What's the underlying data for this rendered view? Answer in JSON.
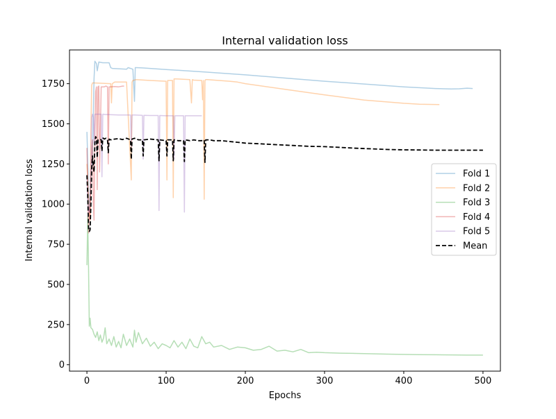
{
  "chart_data": {
    "type": "line",
    "title": "Internal validation loss",
    "xlabel": "Epochs",
    "ylabel": "Internal validation loss",
    "xlim": [
      -22,
      522
    ],
    "ylim": [
      -40,
      1960
    ],
    "xticks": [
      0,
      100,
      200,
      300,
      400,
      500
    ],
    "yticks": [
      0,
      250,
      500,
      750,
      1000,
      1250,
      1500,
      1750
    ],
    "grid": false,
    "legend_position": "center-right",
    "series": [
      {
        "name": "Fold 1",
        "color": "#1f77b4",
        "alpha": 0.35,
        "style": "solid",
        "x": [
          0,
          1,
          2,
          3,
          5,
          7,
          9,
          10,
          12,
          13,
          15,
          20,
          28,
          30,
          32,
          40,
          50,
          52,
          55,
          58,
          60,
          61,
          62,
          70,
          100,
          150,
          200,
          250,
          300,
          350,
          400,
          440,
          460,
          470,
          480,
          487
        ],
        "y": [
          1450,
          1280,
          1050,
          950,
          1150,
          1320,
          1780,
          1890,
          1875,
          1830,
          1885,
          1880,
          1880,
          1850,
          1845,
          1843,
          1840,
          1850,
          1845,
          1840,
          1640,
          1850,
          1850,
          1848,
          1838,
          1822,
          1805,
          1785,
          1765,
          1748,
          1730,
          1720,
          1717,
          1718,
          1722,
          1720
        ]
      },
      {
        "name": "Fold 2",
        "color": "#ff7f0e",
        "alpha": 0.35,
        "style": "solid",
        "x": [
          0,
          2,
          4,
          5,
          6,
          7,
          8,
          30,
          31,
          32,
          35,
          50,
          56,
          57,
          58,
          62,
          80,
          100,
          101,
          102,
          108,
          109,
          110,
          112,
          130,
          132,
          133,
          135,
          145,
          146,
          147,
          148,
          149,
          150,
          152,
          180,
          190,
          200,
          250,
          300,
          350,
          400,
          420,
          445
        ],
        "y": [
          1250,
          1050,
          900,
          1450,
          1740,
          1755,
          1755,
          1750,
          1630,
          1750,
          1760,
          1760,
          1150,
          1760,
          1770,
          1775,
          1770,
          1765,
          1150,
          1770,
          1770,
          1040,
          1780,
          1780,
          1775,
          1630,
          1775,
          1772,
          1770,
          1650,
          1770,
          1030,
          1770,
          1775,
          1775,
          1765,
          1760,
          1750,
          1715,
          1680,
          1648,
          1628,
          1622,
          1620
        ]
      },
      {
        "name": "Fold 3",
        "color": "#2ca02c",
        "alpha": 0.35,
        "style": "solid",
        "x": [
          0,
          1,
          2,
          3,
          4,
          5,
          7,
          9,
          11,
          13,
          15,
          17,
          19,
          21,
          23,
          25,
          28,
          31,
          34,
          37,
          40,
          43,
          46,
          50,
          54,
          58,
          60,
          62,
          65,
          70,
          75,
          80,
          85,
          90,
          95,
          100,
          105,
          110,
          115,
          120,
          125,
          130,
          135,
          140,
          145,
          150,
          155,
          160,
          170,
          180,
          190,
          200,
          210,
          220,
          230,
          240,
          250,
          260,
          270,
          280,
          290,
          300,
          320,
          340,
          360,
          380,
          400,
          420,
          440,
          460,
          480,
          500
        ],
        "y": [
          620,
          920,
          610,
          240,
          290,
          230,
          220,
          190,
          170,
          205,
          150,
          185,
          140,
          165,
          230,
          130,
          160,
          120,
          175,
          110,
          145,
          105,
          190,
          120,
          160,
          110,
          215,
          140,
          200,
          130,
          165,
          115,
          140,
          100,
          130,
          120,
          105,
          150,
          110,
          140,
          100,
          160,
          115,
          105,
          175,
          130,
          140,
          110,
          120,
          95,
          110,
          105,
          90,
          95,
          115,
          85,
          90,
          80,
          95,
          75,
          78,
          75,
          72,
          70,
          68,
          66,
          64,
          63,
          62,
          61,
          60,
          60
        ]
      },
      {
        "name": "Fold 4",
        "color": "#d62728",
        "alpha": 0.35,
        "style": "solid",
        "x": [
          0,
          1,
          2,
          3,
          4,
          5,
          6,
          7,
          8,
          9,
          10,
          11,
          12,
          13,
          14,
          15,
          16,
          18,
          20,
          22,
          24,
          26,
          27,
          28,
          30,
          35,
          40,
          45,
          47
        ],
        "y": [
          1350,
          1100,
          820,
          980,
          900,
          1100,
          1350,
          1400,
          1000,
          900,
          1450,
          1700,
          1730,
          1090,
          1730,
          1735,
          1200,
          1730,
          1730,
          1730,
          1735,
          1730,
          1250,
          1730,
          1730,
          1732,
          1730,
          1735,
          1735
        ]
      },
      {
        "name": "Fold 5",
        "color": "#9467bd",
        "alpha": 0.35,
        "style": "solid",
        "x": [
          0,
          1,
          2,
          3,
          4,
          5,
          6,
          7,
          8,
          9,
          10,
          14,
          18,
          19,
          20,
          21,
          22,
          25,
          40,
          55,
          56,
          57,
          60,
          70,
          71,
          72,
          80,
          90,
          91,
          92,
          100,
          109,
          110,
          111,
          120,
          122,
          123,
          124,
          130,
          140,
          145
        ],
        "y": [
          1180,
          1020,
          960,
          950,
          1100,
          1250,
          1540,
          1560,
          1540,
          1380,
          1560,
          1560,
          1560,
          1170,
          1560,
          1560,
          1558,
          1558,
          1555,
          1555,
          1350,
          1555,
          1555,
          1553,
          1280,
          1553,
          1552,
          1552,
          960,
          1552,
          1550,
          1550,
          1280,
          1550,
          1550,
          1550,
          950,
          1550,
          1550,
          1550,
          1550
        ]
      },
      {
        "name": "Mean",
        "color": "#000000",
        "alpha": 1.0,
        "style": "dashed",
        "x": [
          0,
          1,
          2,
          3,
          4,
          5,
          6,
          7,
          8,
          9,
          10,
          11,
          12,
          13,
          14,
          16,
          18,
          19,
          20,
          21,
          22,
          24,
          26,
          27,
          28,
          30,
          35,
          40,
          45,
          50,
          55,
          56,
          57,
          60,
          65,
          70,
          71,
          72,
          80,
          90,
          91,
          92,
          100,
          101,
          102,
          108,
          109,
          110,
          111,
          115,
          120,
          122,
          123,
          124,
          130,
          135,
          140,
          145,
          148,
          149,
          150,
          155,
          160,
          170,
          180,
          190,
          200,
          220,
          240,
          260,
          280,
          300,
          320,
          340,
          360,
          380,
          400,
          420,
          440,
          460,
          480,
          500
        ],
        "y": [
          1180,
          1060,
          850,
          830,
          840,
          1000,
          1220,
          1300,
          1240,
          1200,
          1380,
          1420,
          1410,
          1290,
          1400,
          1405,
          1400,
          1330,
          1410,
          1410,
          1405,
          1410,
          1400,
          1320,
          1405,
          1400,
          1405,
          1408,
          1402,
          1410,
          1400,
          1280,
          1405,
          1410,
          1400,
          1400,
          1300,
          1400,
          1405,
          1400,
          1270,
          1400,
          1395,
          1300,
          1400,
          1400,
          1270,
          1400,
          1400,
          1395,
          1395,
          1395,
          1265,
          1400,
          1395,
          1400,
          1395,
          1395,
          1400,
          1260,
          1400,
          1400,
          1395,
          1395,
          1390,
          1385,
          1380,
          1375,
          1370,
          1365,
          1360,
          1358,
          1353,
          1348,
          1344,
          1340,
          1338,
          1337,
          1336,
          1336,
          1336,
          1336
        ]
      }
    ]
  }
}
